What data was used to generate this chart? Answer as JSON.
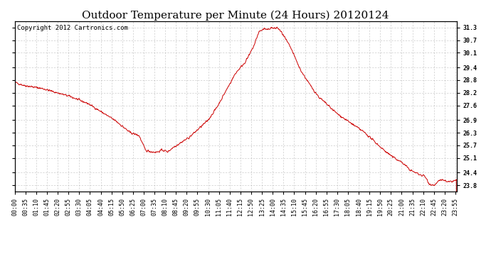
{
  "title": "Outdoor Temperature per Minute (24 Hours) 20120124",
  "copyright_text": "Copyright 2012 Cartronics.com",
  "line_color": "#cc0000",
  "background_color": "#ffffff",
  "grid_color": "#aaaaaa",
  "yticks": [
    23.8,
    24.4,
    25.1,
    25.7,
    26.3,
    26.9,
    27.6,
    28.2,
    28.8,
    29.4,
    30.1,
    30.7,
    31.3
  ],
  "ylim": [
    23.5,
    31.6
  ],
  "xtick_labels": [
    "00:00",
    "00:35",
    "01:10",
    "01:45",
    "02:20",
    "02:55",
    "03:30",
    "04:05",
    "04:40",
    "05:15",
    "05:50",
    "06:25",
    "07:00",
    "07:35",
    "08:10",
    "08:45",
    "09:20",
    "09:55",
    "10:30",
    "11:05",
    "11:40",
    "12:15",
    "12:50",
    "13:25",
    "14:00",
    "14:35",
    "15:10",
    "15:45",
    "16:20",
    "16:55",
    "17:30",
    "18:05",
    "18:40",
    "19:15",
    "19:50",
    "20:25",
    "21:00",
    "21:35",
    "22:10",
    "22:45",
    "23:20",
    "23:55"
  ],
  "title_fontsize": 11,
  "tick_fontsize": 6,
  "copyright_fontsize": 6.5,
  "figsize": [
    6.9,
    3.75
  ],
  "dpi": 100
}
